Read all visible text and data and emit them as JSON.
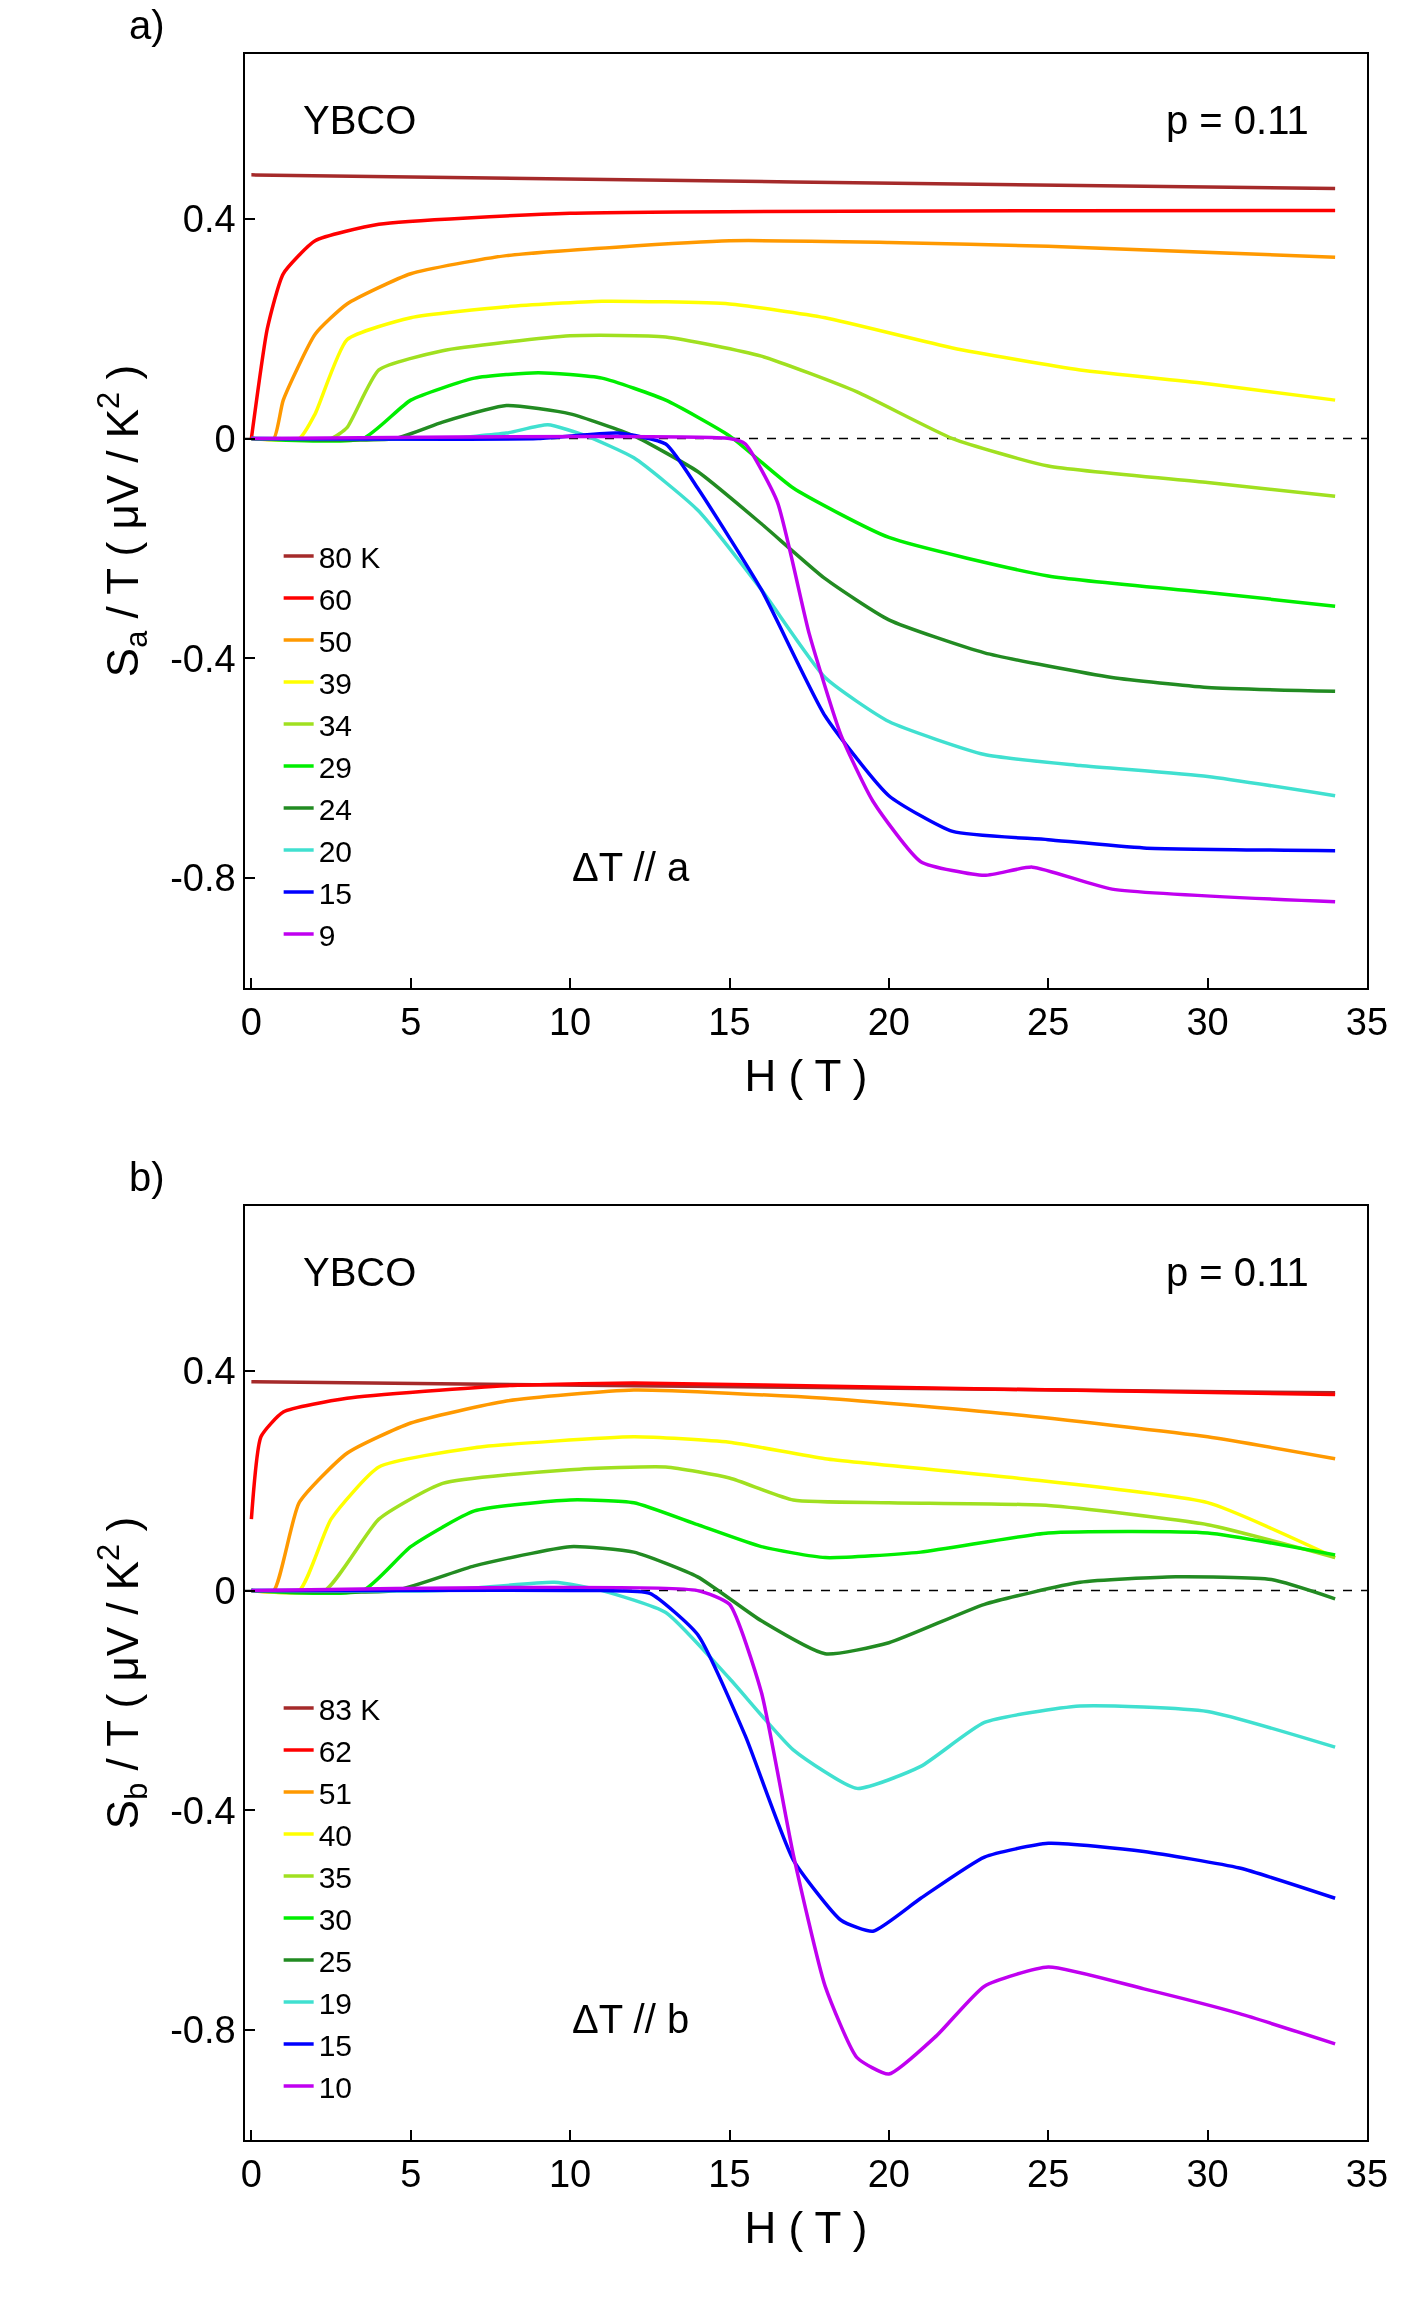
{
  "chart_data": [
    {
      "type": "line",
      "xlabel": "H ( T )",
      "ylabel": "S$_{a}$ / T ( μV / K$^{2}$ )",
      "xlim": [
        -0.2,
        35
      ],
      "ylim": [
        -1,
        0.7
      ],
      "xticks": [
        0,
        5,
        10,
        15,
        20,
        25,
        30,
        35
      ],
      "yticks": [
        -0.8,
        -0.4,
        0,
        0.4
      ],
      "legend": "bottom left",
      "line_style": "solid",
      "annotations": [
        "a)",
        "YBCO",
        "p = 0.11",
        "ΔT // a"
      ],
      "ref_lines": [
        {
          "axis": "y",
          "value": 0,
          "color": "#000000",
          "line_style": "dashed"
        }
      ],
      "series": [
        {
          "name": "80 K",
          "color": "#a52a2a",
          "x": [
            0,
            17,
            34
          ],
          "values": [
            0.48,
            0.467,
            0.455
          ]
        },
        {
          "name": "60",
          "color": "#ff0000",
          "x": [
            0,
            0.5,
            1,
            2,
            4,
            10,
            34
          ],
          "values": [
            0,
            0.2,
            0.3,
            0.36,
            0.39,
            0.41,
            0.415
          ]
        },
        {
          "name": "50",
          "color": "#ff9900",
          "x": [
            0,
            0.7,
            1,
            2,
            3,
            5,
            8,
            15,
            20,
            25,
            34
          ],
          "values": [
            0,
            0,
            0.07,
            0.19,
            0.245,
            0.3,
            0.333,
            0.36,
            0.357,
            0.35,
            0.33
          ]
        },
        {
          "name": "39",
          "color": "#ffff00",
          "x": [
            0,
            1.5,
            2,
            3,
            5,
            8,
            11,
            15,
            18,
            22,
            26,
            30,
            34
          ],
          "values": [
            0,
            0,
            0.045,
            0.18,
            0.22,
            0.24,
            0.25,
            0.245,
            0.22,
            0.165,
            0.125,
            0.1,
            0.07
          ]
        },
        {
          "name": "34",
          "color": "#a0e020",
          "x": [
            0,
            2.5,
            3,
            4,
            6,
            10,
            13,
            16,
            19,
            22,
            25,
            30,
            34
          ],
          "values": [
            0,
            0,
            0.02,
            0.125,
            0.16,
            0.187,
            0.185,
            0.15,
            0.085,
            0,
            -0.05,
            -0.08,
            -0.105
          ]
        },
        {
          "name": "29",
          "color": "#00ee00",
          "x": [
            0,
            3.5,
            5,
            7,
            9,
            11,
            13,
            15,
            17,
            20,
            25,
            30,
            34
          ],
          "values": [
            0,
            0,
            0.07,
            0.11,
            0.12,
            0.11,
            0.07,
            0.005,
            -0.09,
            -0.18,
            -0.25,
            -0.28,
            -0.305
          ]
        },
        {
          "name": "24",
          "color": "#228b22",
          "x": [
            0,
            4.5,
            6,
            8,
            10,
            12,
            14,
            16,
            18,
            20,
            23,
            27,
            30,
            34
          ],
          "values": [
            0,
            0,
            0.03,
            0.06,
            0.045,
            0.005,
            -0.06,
            -0.155,
            -0.255,
            -0.33,
            -0.39,
            -0.435,
            -0.453,
            -0.46
          ]
        },
        {
          "name": "20",
          "color": "#40e0d0",
          "x": [
            0,
            6,
            8,
            9.3,
            10.5,
            12,
            14,
            16,
            18,
            20,
            23,
            26,
            30,
            34
          ],
          "values": [
            0,
            0,
            0.01,
            0.025,
            0.005,
            -0.035,
            -0.13,
            -0.275,
            -0.435,
            -0.515,
            -0.575,
            -0.595,
            -0.615,
            -0.65
          ]
        },
        {
          "name": "15",
          "color": "#0000ff",
          "x": [
            0,
            9,
            11.5,
            13,
            14,
            16,
            18,
            20,
            22,
            25,
            28,
            34
          ],
          "values": [
            0,
            0,
            0.01,
            -0.01,
            -0.09,
            -0.275,
            -0.505,
            -0.65,
            -0.715,
            -0.73,
            -0.745,
            -0.75
          ]
        },
        {
          "name": "9",
          "color": "#c000f0",
          "x": [
            0,
            15,
            15.5,
            16.5,
            17.5,
            18.5,
            19.5,
            21,
            23,
            24.5,
            27,
            34
          ],
          "values": [
            0,
            0,
            -0.01,
            -0.115,
            -0.355,
            -0.54,
            -0.66,
            -0.77,
            -0.795,
            -0.78,
            -0.82,
            -0.843
          ]
        }
      ]
    },
    {
      "type": "line",
      "xlabel": "H ( T )",
      "ylabel": "S$_{b}$ / T ( μV / K$^{2}$ )",
      "xlim": [
        -0.2,
        35
      ],
      "ylim": [
        -1,
        0.7
      ],
      "xticks": [
        0,
        5,
        10,
        15,
        20,
        25,
        30,
        35
      ],
      "yticks": [
        -0.8,
        -0.4,
        0,
        0.4
      ],
      "legend": "bottom left",
      "line_style": "solid",
      "annotations": [
        "b)",
        "YBCO",
        "p = 0.11",
        "ΔT // b"
      ],
      "ref_lines": [
        {
          "axis": "y",
          "value": 0,
          "color": "#000000",
          "line_style": "dashed"
        }
      ],
      "series": [
        {
          "name": "83 K",
          "color": "#a52a2a",
          "x": [
            0,
            17,
            34
          ],
          "values": [
            0.38,
            0.37,
            0.36
          ]
        },
        {
          "name": "62",
          "color": "#ff0000",
          "x": [
            0,
            0.3,
            1,
            3,
            8,
            12,
            20,
            34
          ],
          "values": [
            0.13,
            0.28,
            0.325,
            0.35,
            0.373,
            0.378,
            0.37,
            0.357
          ]
        },
        {
          "name": "51",
          "color": "#ff9900",
          "x": [
            0,
            0.7,
            1.5,
            3,
            5,
            8,
            12,
            18,
            24,
            30,
            34
          ],
          "values": [
            0,
            0,
            0.16,
            0.25,
            0.305,
            0.345,
            0.365,
            0.35,
            0.32,
            0.28,
            0.24
          ]
        },
        {
          "name": "40",
          "color": "#ffff00",
          "x": [
            0,
            1.5,
            2.5,
            4,
            7,
            12,
            15,
            18,
            24,
            30,
            34
          ],
          "values": [
            0,
            0,
            0.13,
            0.225,
            0.26,
            0.28,
            0.27,
            0.24,
            0.205,
            0.16,
            0.06
          ]
        },
        {
          "name": "35",
          "color": "#a0e020",
          "x": [
            0,
            2.3,
            4,
            6,
            10,
            13,
            15,
            17,
            20,
            25,
            30,
            34
          ],
          "values": [
            0,
            0,
            0.13,
            0.195,
            0.22,
            0.225,
            0.205,
            0.165,
            0.16,
            0.155,
            0.12,
            0.06
          ]
        },
        {
          "name": "30",
          "color": "#00ee00",
          "x": [
            0,
            3.5,
            5,
            7,
            10,
            12,
            14,
            16,
            18,
            21,
            25,
            30,
            34
          ],
          "values": [
            0,
            0,
            0.08,
            0.145,
            0.165,
            0.16,
            0.12,
            0.08,
            0.06,
            0.07,
            0.105,
            0.105,
            0.065
          ]
        },
        {
          "name": "25",
          "color": "#228b22",
          "x": [
            0,
            4.5,
            7,
            10,
            12,
            14,
            16,
            18,
            20,
            23,
            26,
            29,
            32,
            34
          ],
          "values": [
            0,
            0,
            0.045,
            0.08,
            0.07,
            0.025,
            -0.055,
            -0.115,
            -0.095,
            -0.025,
            0.015,
            0.025,
            0.02,
            -0.015
          ]
        },
        {
          "name": "19",
          "color": "#40e0d0",
          "x": [
            0,
            6,
            9.5,
            11,
            13,
            15,
            17,
            19,
            21,
            23,
            26,
            30,
            34
          ],
          "values": [
            0,
            0,
            0.015,
            0,
            -0.04,
            -0.16,
            -0.29,
            -0.36,
            -0.32,
            -0.24,
            -0.21,
            -0.22,
            -0.285
          ]
        },
        {
          "name": "15",
          "color": "#0000ff",
          "x": [
            0,
            11,
            12.5,
            14,
            15.5,
            17,
            18.5,
            19.5,
            21,
            23,
            25,
            28,
            31,
            34
          ],
          "values": [
            0,
            0,
            -0.005,
            -0.08,
            -0.265,
            -0.49,
            -0.6,
            -0.62,
            -0.56,
            -0.485,
            -0.46,
            -0.475,
            -0.505,
            -0.56
          ]
        },
        {
          "name": "10",
          "color": "#c000f0",
          "x": [
            0,
            14,
            15,
            16,
            17,
            18,
            19,
            20,
            21.5,
            23,
            25,
            28,
            31,
            34
          ],
          "values": [
            0,
            0,
            -0.025,
            -0.185,
            -0.48,
            -0.72,
            -0.85,
            -0.88,
            -0.81,
            -0.72,
            -0.685,
            -0.725,
            -0.77,
            -0.825
          ]
        }
      ]
    }
  ]
}
